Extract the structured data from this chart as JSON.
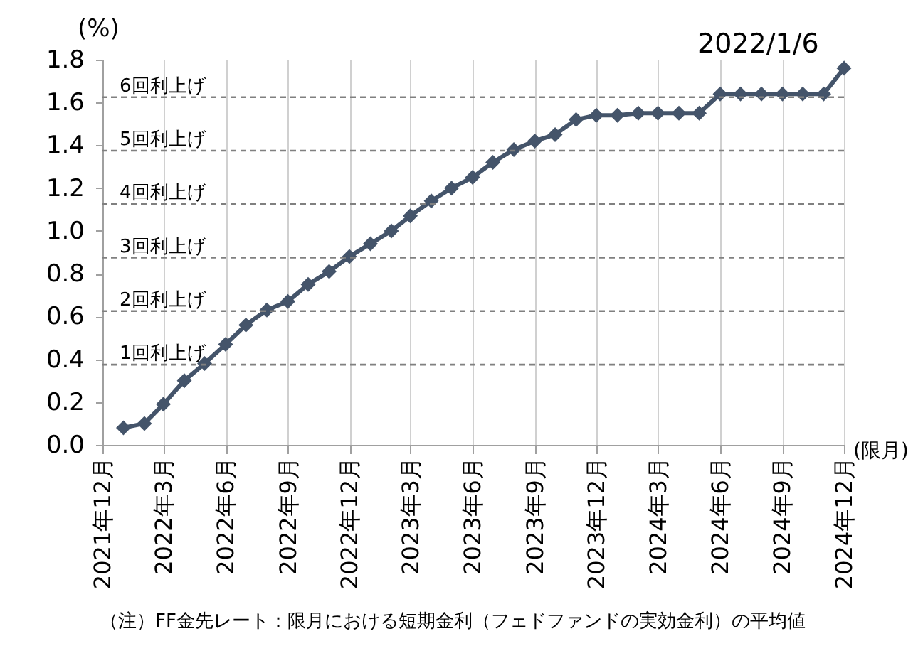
{
  "chart_data": {
    "type": "line",
    "ylabel": "(%)",
    "xlabel": "(限月)",
    "annotations": [
      "2022/1/6",
      "（注）FF金先レート：限月における短期金利（フェドファンドの実効金利）の平均値"
    ],
    "x": [
      "2022-01",
      "2022-02",
      "2022-03",
      "2022-04",
      "2022-05",
      "2022-06",
      "2022-07",
      "2022-08",
      "2022-09",
      "2022-10",
      "2022-11",
      "2022-12",
      "2023-01",
      "2023-02",
      "2023-03",
      "2023-04",
      "2023-05",
      "2023-06",
      "2023-07",
      "2023-08",
      "2023-09",
      "2023-10",
      "2023-11",
      "2023-12",
      "2024-01",
      "2024-02",
      "2024-03",
      "2024-04",
      "2024-05",
      "2024-06",
      "2024-07",
      "2024-08",
      "2024-09",
      "2024-10",
      "2024-11",
      "2024-12"
    ],
    "series": [
      {
        "color": "#44546a",
        "values": [
          0.08,
          0.1,
          0.19,
          0.3,
          0.38,
          0.47,
          0.56,
          0.63,
          0.67,
          0.75,
          0.81,
          0.88,
          0.94,
          1.0,
          1.07,
          1.14,
          1.2,
          1.25,
          1.32,
          1.38,
          1.42,
          1.45,
          1.52,
          1.54,
          1.54,
          1.55,
          1.55,
          1.55,
          1.55,
          1.64,
          1.64,
          1.64,
          1.64,
          1.64,
          1.64,
          1.76
        ]
      }
    ],
    "xlim": [
      "2021-12",
      "2024-12"
    ],
    "xticks": [
      {
        "value": "2021-12",
        "label": "2021年12月"
      },
      {
        "value": "2022-03",
        "label": "2022年3月"
      },
      {
        "value": "2022-06",
        "label": "2022年6月"
      },
      {
        "value": "2022-09",
        "label": "2022年9月"
      },
      {
        "value": "2022-12",
        "label": "2022年12月"
      },
      {
        "value": "2023-03",
        "label": "2023年3月"
      },
      {
        "value": "2023-06",
        "label": "2023年6月"
      },
      {
        "value": "2023-09",
        "label": "2023年9月"
      },
      {
        "value": "2023-12",
        "label": "2023年12月"
      },
      {
        "value": "2024-03",
        "label": "2024年3月"
      },
      {
        "value": "2024-06",
        "label": "2024年6月"
      },
      {
        "value": "2024-09",
        "label": "2024年9月"
      },
      {
        "value": "2024-12",
        "label": "2024年12月"
      }
    ],
    "ylim": [
      0,
      1.8
    ],
    "yticks": [
      {
        "value": 0,
        "label": "0.0"
      },
      {
        "value": 0.2,
        "label": "0.2"
      },
      {
        "value": 0.4,
        "label": "0.4"
      },
      {
        "value": 0.6,
        "label": "0.6"
      },
      {
        "value": 0.8,
        "label": "0.8"
      },
      {
        "value": 1,
        "label": "1.0"
      },
      {
        "value": 1.2,
        "label": "1.2"
      },
      {
        "value": 1.4,
        "label": "1.4"
      },
      {
        "value": 1.6,
        "label": "1.6"
      },
      {
        "value": 1.8,
        "label": "1.8"
      }
    ],
    "ref_lines": [
      {
        "axis": "y",
        "value": 0.375,
        "label": "1回利上げ",
        "color": "#808080",
        "line_style": "dashed"
      },
      {
        "axis": "y",
        "value": 0.625,
        "label": "2回利上げ",
        "color": "#808080",
        "line_style": "dashed"
      },
      {
        "axis": "y",
        "value": 0.875,
        "label": "3回利上げ",
        "color": "#808080",
        "line_style": "dashed"
      },
      {
        "axis": "y",
        "value": 1.125,
        "label": "4回利上げ",
        "color": "#808080",
        "line_style": "dashed"
      },
      {
        "axis": "y",
        "value": 1.375,
        "label": "5回利上げ",
        "color": "#808080",
        "line_style": "dashed"
      },
      {
        "axis": "y",
        "value": 1.625,
        "label": "6回利上げ",
        "color": "#808080",
        "line_style": "dashed"
      }
    ],
    "grid": "x",
    "marker": "diamond",
    "line_style": "solid"
  }
}
